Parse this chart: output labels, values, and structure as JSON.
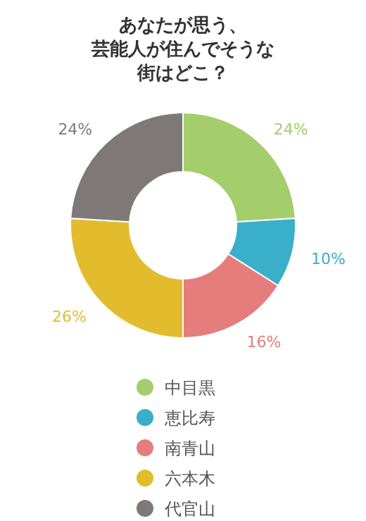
{
  "chart_data": {
    "type": "donut",
    "title": "あなたが思う、芸能人が住んでそうな街はどこ？",
    "categories": [
      "中目黒",
      "恵比寿",
      "南青山",
      "六本木",
      "代官山"
    ],
    "values": [
      24,
      10,
      16,
      26,
      24
    ],
    "colors": [
      "#a4cd6b",
      "#39afc9",
      "#e47d7c",
      "#e3bc2e",
      "#7e7977"
    ],
    "value_labels": [
      "24%",
      "10%",
      "16%",
      "26%",
      "24%"
    ],
    "legend": "bottom"
  }
}
